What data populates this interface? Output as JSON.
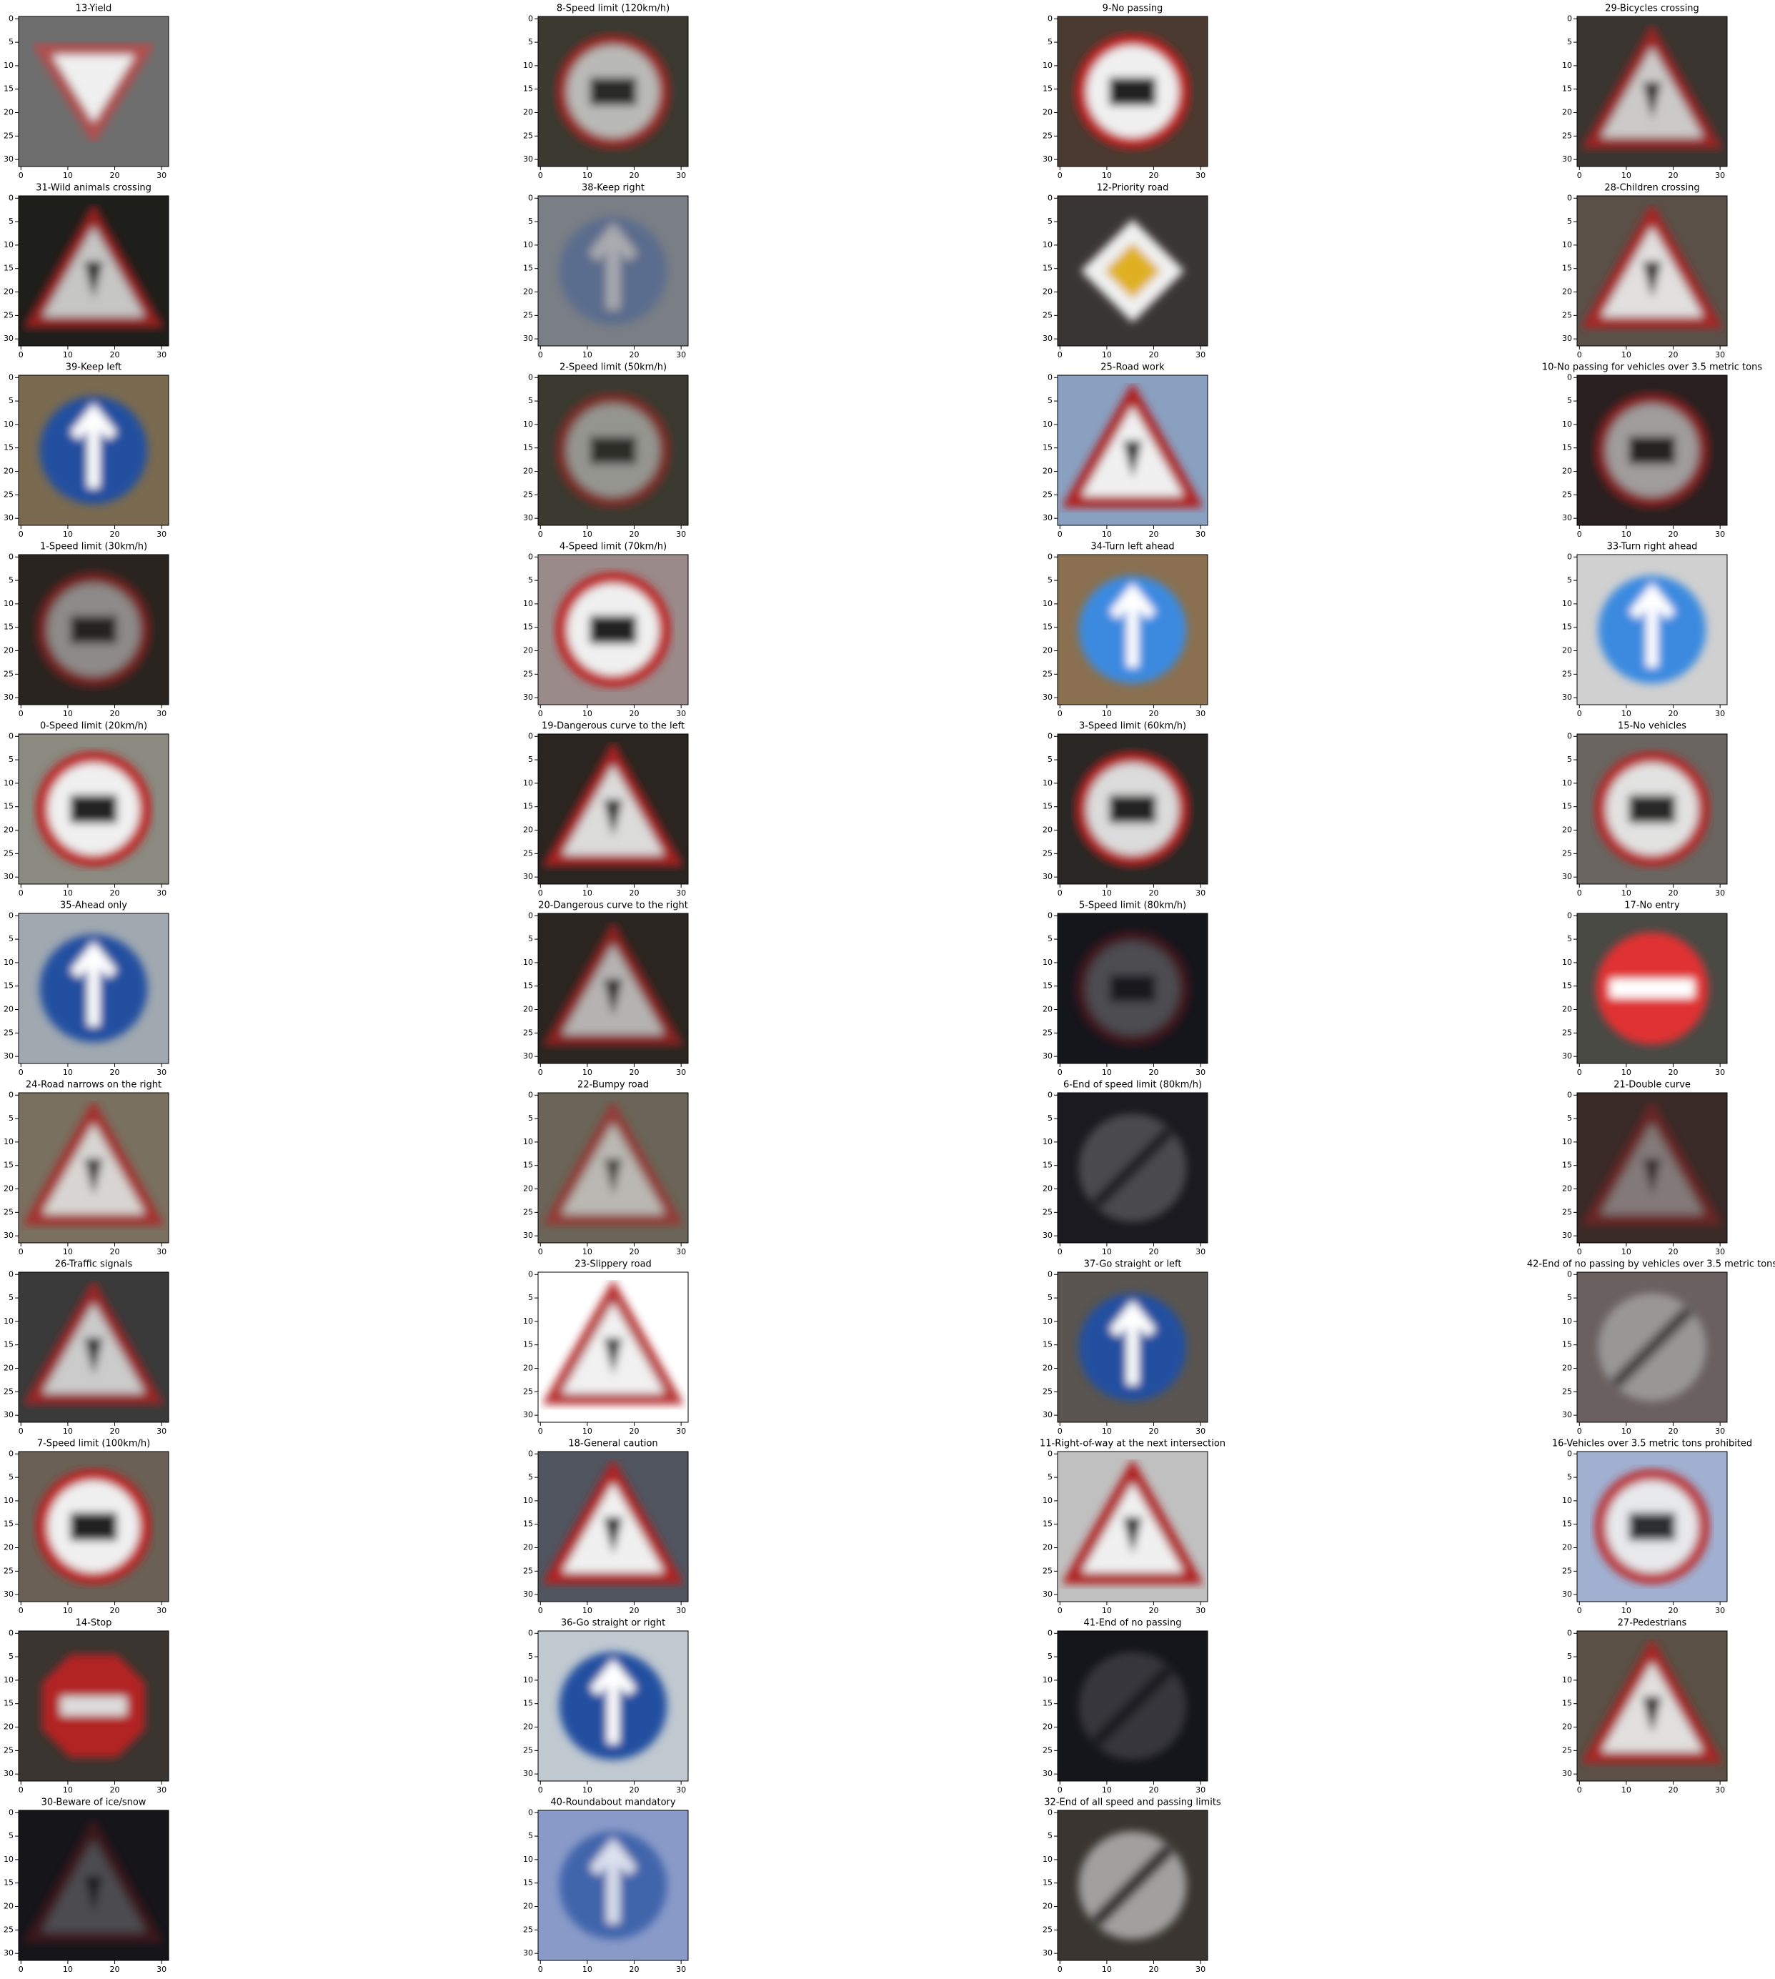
{
  "panels": [
    {
      "title": "13-Yield"
    },
    {
      "title": "8-Speed limit (120km/h)"
    },
    {
      "title": "9-No passing"
    },
    {
      "title": "29-Bicycles crossing"
    },
    {
      "title": "31-Wild animals crossing"
    },
    {
      "title": "38-Keep right"
    },
    {
      "title": "12-Priority road"
    },
    {
      "title": "28-Children crossing"
    },
    {
      "title": "39-Keep left"
    },
    {
      "title": "2-Speed limit (50km/h)"
    },
    {
      "title": "25-Road work"
    },
    {
      "title": "10-No passing for vehicles over 3.5 metric tons"
    },
    {
      "title": "1-Speed limit (30km/h)"
    },
    {
      "title": "4-Speed limit (70km/h)"
    },
    {
      "title": "34-Turn left ahead"
    },
    {
      "title": "33-Turn right ahead"
    },
    {
      "title": "0-Speed limit (20km/h)"
    },
    {
      "title": "19-Dangerous curve to the left"
    },
    {
      "title": "3-Speed limit (60km/h)"
    },
    {
      "title": "15-No vehicles"
    },
    {
      "title": "35-Ahead only"
    },
    {
      "title": "20-Dangerous curve to the right"
    },
    {
      "title": "5-Speed limit (80km/h)"
    },
    {
      "title": "17-No entry"
    },
    {
      "title": "24-Road narrows on the right"
    },
    {
      "title": "22-Bumpy road"
    },
    {
      "title": "6-End of speed limit (80km/h)"
    },
    {
      "title": "21-Double curve"
    },
    {
      "title": "26-Traffic signals"
    },
    {
      "title": "23-Slippery road"
    },
    {
      "title": "37-Go straight or left"
    },
    {
      "title": "42-End of no passing by vehicles over 3.5 metric tons"
    },
    {
      "title": "7-Speed limit (100km/h)"
    },
    {
      "title": "18-General caution"
    },
    {
      "title": "11-Right-of-way at the next intersection"
    },
    {
      "title": "16-Vehicles over 3.5 metric tons prohibited"
    },
    {
      "title": "14-Stop"
    },
    {
      "title": "36-Go straight or right"
    },
    {
      "title": "41-End of no passing"
    },
    {
      "title": "27-Pedestrians"
    },
    {
      "title": "30-Beware of ice/snow"
    },
    {
      "title": "40-Roundabout mandatory"
    },
    {
      "title": "32-End of all speed and passing limits"
    }
  ],
  "axes": {
    "xlim": [
      -0.5,
      31.5
    ],
    "ylim": [
      31.5,
      -0.5
    ],
    "xticks": [
      0,
      10,
      20,
      30
    ],
    "yticks": [
      0,
      5,
      10,
      15,
      20,
      25,
      30
    ]
  }
}
